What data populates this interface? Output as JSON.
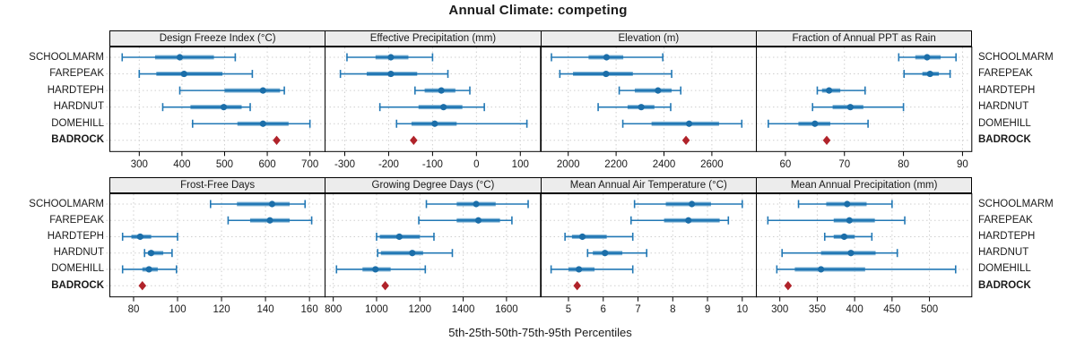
{
  "title": "Annual Climate: competing",
  "xlabel": "5th-25th-50th-75th-95th Percentiles",
  "stations": [
    "SCHOOLMARM",
    "FAREPEAK",
    "HARDTEPH",
    "HARDNUT",
    "DOMEHILL",
    "BADROCK"
  ],
  "highlight_station": "BADROCK",
  "colors": {
    "line": "#2278b5",
    "band_halo": "#8fbcd9",
    "median_dot": "#1b6ea9",
    "diamond": "#b0232a",
    "strip_bg": "#ececec",
    "panel_border": "#000000",
    "grid": "#cfcfcf",
    "text": "#1a1a1a"
  },
  "chart_data": [
    {
      "type": "dotplot-percentiles",
      "title": "Design Freeze Index (°C)",
      "grid_row": 0,
      "grid_col": 0,
      "xlim": [
        230,
        735
      ],
      "xticks": [
        300,
        400,
        500,
        600,
        700
      ],
      "rows": [
        {
          "station": "SCHOOLMARM",
          "percentiles": [
            260,
            337,
            395,
            475,
            525
          ]
        },
        {
          "station": "FAREPEAK",
          "percentiles": [
            300,
            340,
            405,
            495,
            565
          ]
        },
        {
          "station": "HARDTEPH",
          "percentiles": [
            395,
            500,
            590,
            630,
            640
          ]
        },
        {
          "station": "HARDNUT",
          "percentiles": [
            355,
            420,
            498,
            540,
            560
          ]
        },
        {
          "station": "DOMEHILL",
          "percentiles": [
            425,
            530,
            590,
            650,
            700
          ]
        },
        {
          "station": "BADROCK",
          "marker": "diamond",
          "value": 622
        }
      ]
    },
    {
      "type": "dotplot-percentiles",
      "title": "Effective Precipitation (mm)",
      "grid_row": 0,
      "grid_col": 1,
      "xlim": [
        -346,
        145
      ],
      "xticks": [
        -300,
        -200,
        -100,
        0,
        100
      ],
      "rows": [
        {
          "station": "SCHOOLMARM",
          "percentiles": [
            -295,
            -230,
            -195,
            -155,
            -100
          ]
        },
        {
          "station": "FAREPEAK",
          "percentiles": [
            -310,
            -250,
            -195,
            -135,
            -65
          ]
        },
        {
          "station": "HARDTEPH",
          "percentiles": [
            -140,
            -118,
            -80,
            -48,
            -15
          ]
        },
        {
          "station": "HARDNUT",
          "percentiles": [
            -220,
            -132,
            -75,
            -32,
            18
          ]
        },
        {
          "station": "DOMEHILL",
          "percentiles": [
            -182,
            -148,
            -95,
            -45,
            115
          ]
        },
        {
          "station": "BADROCK",
          "marker": "diamond",
          "value": -143
        }
      ]
    },
    {
      "type": "dotplot-percentiles",
      "title": "Elevation (m)",
      "grid_row": 0,
      "grid_col": 2,
      "xlim": [
        1885,
        2785
      ],
      "xticks": [
        2000,
        2200,
        2400,
        2600
      ],
      "rows": [
        {
          "station": "SCHOOLMARM",
          "percentiles": [
            1930,
            2085,
            2160,
            2230,
            2395
          ]
        },
        {
          "station": "FAREPEAK",
          "percentiles": [
            1965,
            2020,
            2158,
            2270,
            2432
          ]
        },
        {
          "station": "HARDTEPH",
          "percentiles": [
            2213,
            2278,
            2375,
            2432,
            2470
          ]
        },
        {
          "station": "HARDNUT",
          "percentiles": [
            2125,
            2248,
            2305,
            2360,
            2428
          ]
        },
        {
          "station": "DOMEHILL",
          "percentiles": [
            2228,
            2348,
            2505,
            2630,
            2725
          ]
        },
        {
          "station": "BADROCK",
          "marker": "diamond",
          "value": 2492
        }
      ]
    },
    {
      "type": "dotplot-percentiles",
      "title": "Fraction of Annual PPT as Rain",
      "grid_row": 0,
      "grid_col": 3,
      "xlim": [
        55,
        91.5
      ],
      "xticks": [
        60,
        70,
        80,
        90
      ],
      "rows": [
        {
          "station": "SCHOOLMARM",
          "percentiles": [
            79.2,
            82.0,
            84.0,
            86.3,
            88.9
          ]
        },
        {
          "station": "FAREPEAK",
          "percentiles": [
            80.1,
            83.2,
            84.5,
            86.0,
            87.9
          ]
        },
        {
          "station": "HARDTEPH",
          "percentiles": [
            65.4,
            66.2,
            67.4,
            69.3,
            73.5
          ]
        },
        {
          "station": "HARDNUT",
          "percentiles": [
            64.6,
            68.0,
            71.0,
            73.2,
            80.0
          ]
        },
        {
          "station": "DOMEHILL",
          "percentiles": [
            57.1,
            62.2,
            65.0,
            67.6,
            74.0
          ]
        },
        {
          "station": "BADROCK",
          "marker": "diamond",
          "value": 67.0
        }
      ]
    },
    {
      "type": "dotplot-percentiles",
      "title": "Frost-Free Days",
      "grid_row": 1,
      "grid_col": 0,
      "xlim": [
        69,
        167
      ],
      "xticks": [
        80,
        100,
        120,
        140,
        160
      ],
      "rows": [
        {
          "station": "SCHOOLMARM",
          "percentiles": [
            115,
            127,
            143,
            151,
            158
          ]
        },
        {
          "station": "FAREPEAK",
          "percentiles": [
            123,
            133,
            142,
            151,
            161
          ]
        },
        {
          "station": "HARDTEPH",
          "percentiles": [
            75,
            79,
            83,
            88,
            100
          ]
        },
        {
          "station": "HARDNUT",
          "percentiles": [
            85,
            86.5,
            88,
            93.5,
            97.5
          ]
        },
        {
          "station": "DOMEHILL",
          "percentiles": [
            75,
            84,
            87,
            91,
            99.5
          ]
        },
        {
          "station": "BADROCK",
          "marker": "diamond",
          "value": 84
        }
      ]
    },
    {
      "type": "dotplot-percentiles",
      "title": "Growing Degree Days (°C)",
      "grid_row": 1,
      "grid_col": 1,
      "xlim": [
        760,
        1755
      ],
      "xticks": [
        800,
        1000,
        1200,
        1400,
        1600
      ],
      "rows": [
        {
          "station": "SCHOOLMARM",
          "percentiles": [
            1230,
            1370,
            1460,
            1550,
            1700
          ]
        },
        {
          "station": "FAREPEAK",
          "percentiles": [
            1195,
            1370,
            1470,
            1570,
            1625
          ]
        },
        {
          "station": "HARDTEPH",
          "percentiles": [
            1000,
            1015,
            1105,
            1200,
            1265
          ]
        },
        {
          "station": "HARDNUT",
          "percentiles": [
            1005,
            1020,
            1165,
            1215,
            1350
          ]
        },
        {
          "station": "DOMEHILL",
          "percentiles": [
            815,
            935,
            995,
            1065,
            1225
          ]
        },
        {
          "station": "BADROCK",
          "marker": "diamond",
          "value": 1040
        }
      ]
    },
    {
      "type": "dotplot-percentiles",
      "title": "Mean Annual Air Temperature (°C)",
      "grid_row": 1,
      "grid_col": 2,
      "xlim": [
        4.2,
        10.4
      ],
      "xticks": [
        5,
        6,
        7,
        8,
        9,
        10
      ],
      "rows": [
        {
          "station": "SCHOOLMARM",
          "percentiles": [
            6.9,
            7.8,
            8.55,
            9.1,
            10.0
          ]
        },
        {
          "station": "FAREPEAK",
          "percentiles": [
            6.8,
            7.75,
            8.45,
            9.35,
            9.6
          ]
        },
        {
          "station": "HARDTEPH",
          "percentiles": [
            4.9,
            5.1,
            5.4,
            6.1,
            6.85
          ]
        },
        {
          "station": "HARDNUT",
          "percentiles": [
            5.55,
            5.7,
            6.05,
            6.55,
            7.25
          ]
        },
        {
          "station": "DOMEHILL",
          "percentiles": [
            4.5,
            5.0,
            5.3,
            5.75,
            6.85
          ]
        },
        {
          "station": "BADROCK",
          "marker": "diamond",
          "value": 5.25
        }
      ]
    },
    {
      "type": "dotplot-percentiles",
      "title": "Mean Annual Precipitation (mm)",
      "grid_row": 1,
      "grid_col": 3,
      "xlim": [
        268,
        556
      ],
      "xticks": [
        300,
        350,
        400,
        450,
        500
      ],
      "rows": [
        {
          "station": "SCHOOLMARM",
          "percentiles": [
            325,
            362,
            390,
            416,
            450
          ]
        },
        {
          "station": "FAREPEAK",
          "percentiles": [
            284,
            372,
            393,
            427,
            467
          ]
        },
        {
          "station": "HARDTEPH",
          "percentiles": [
            360,
            372,
            386,
            400,
            423
          ]
        },
        {
          "station": "HARDNUT",
          "percentiles": [
            303,
            355,
            395,
            428,
            457
          ]
        },
        {
          "station": "DOMEHILL",
          "percentiles": [
            296,
            320,
            355,
            414,
            535
          ]
        },
        {
          "station": "BADROCK",
          "marker": "diamond",
          "value": 311
        }
      ]
    }
  ]
}
